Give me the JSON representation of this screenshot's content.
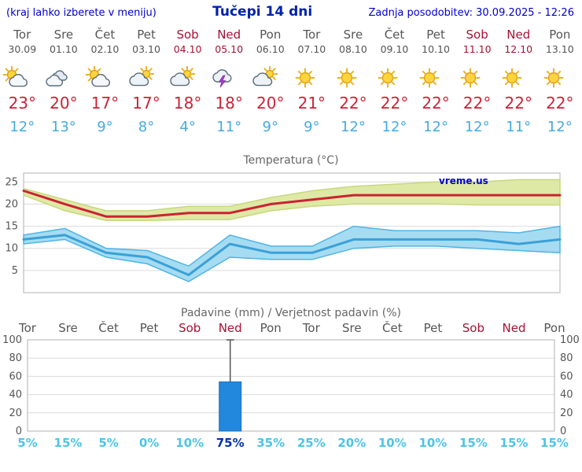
{
  "header": {
    "left_note": "(kraj lahko izberete v meniju)",
    "title": "Tučepi 14 dni",
    "last_update": "Zadnja posodobitev: 30.09.2025 - 12:26"
  },
  "days": [
    {
      "name": "Tor",
      "date": "30.09",
      "weekend": false,
      "icon": "sun-cloud",
      "tmax": "23°",
      "tmin": "12°"
    },
    {
      "name": "Sre",
      "date": "01.10",
      "weekend": false,
      "icon": "clouds",
      "tmax": "20°",
      "tmin": "13°"
    },
    {
      "name": "Čet",
      "date": "02.10",
      "weekend": false,
      "icon": "sun-cloud",
      "tmax": "17°",
      "tmin": "9°"
    },
    {
      "name": "Pet",
      "date": "03.10",
      "weekend": false,
      "icon": "cloud-sun",
      "tmax": "17°",
      "tmin": "8°"
    },
    {
      "name": "Sob",
      "date": "04.10",
      "weekend": true,
      "icon": "cloud-sun",
      "tmax": "18°",
      "tmin": "4°"
    },
    {
      "name": "Ned",
      "date": "05.10",
      "weekend": true,
      "icon": "thunder",
      "tmax": "18°",
      "tmin": "11°"
    },
    {
      "name": "Pon",
      "date": "06.10",
      "weekend": false,
      "icon": "cloud-sun",
      "tmax": "20°",
      "tmin": "9°"
    },
    {
      "name": "Tor",
      "date": "07.10",
      "weekend": false,
      "icon": "sun",
      "tmax": "21°",
      "tmin": "9°"
    },
    {
      "name": "Sre",
      "date": "08.10",
      "weekend": false,
      "icon": "sun",
      "tmax": "22°",
      "tmin": "12°"
    },
    {
      "name": "Čet",
      "date": "09.10",
      "weekend": false,
      "icon": "sun",
      "tmax": "22°",
      "tmin": "12°"
    },
    {
      "name": "Pet",
      "date": "10.10",
      "weekend": false,
      "icon": "sun",
      "tmax": "22°",
      "tmin": "12°"
    },
    {
      "name": "Sob",
      "date": "11.10",
      "weekend": true,
      "icon": "sun",
      "tmax": "22°",
      "tmin": "12°"
    },
    {
      "name": "Ned",
      "date": "12.10",
      "weekend": true,
      "icon": "sun",
      "tmax": "22°",
      "tmin": "11°"
    },
    {
      "name": "Pon",
      "date": "13.10",
      "weekend": false,
      "icon": "sun",
      "tmax": "22°",
      "tmin": "12°"
    }
  ],
  "chart_data": [
    {
      "type": "line",
      "title": "Temperatura (°C)",
      "x_labels": [
        "Tor",
        "Sre",
        "Čet",
        "Pet",
        "Sob",
        "Ned",
        "Pon",
        "Tor",
        "Sre",
        "Čet",
        "Pet",
        "Sob",
        "Ned",
        "Pon"
      ],
      "ylim": [
        0,
        27
      ],
      "yticks": [
        5,
        10,
        15,
        20,
        25
      ],
      "watermark": "vreme.us",
      "series": [
        {
          "name": "max-range",
          "type": "band",
          "fill": "#dfe9a6",
          "stroke": "#c6d87e",
          "upper": [
            23.5,
            21,
            18.5,
            18.5,
            19.5,
            19.5,
            21.5,
            23,
            24,
            24.5,
            25,
            25,
            25.5,
            25.5
          ],
          "lower": [
            22,
            18.5,
            16.3,
            16.3,
            16.5,
            16.5,
            18.5,
            19.5,
            20,
            20,
            20,
            19.8,
            19.8,
            19.8
          ]
        },
        {
          "name": "min-range",
          "type": "band",
          "fill": "#a6dcf2",
          "stroke": "#4fb4e4",
          "upper": [
            13,
            14.5,
            10,
            9.5,
            6,
            13,
            10.5,
            10.5,
            15,
            14,
            14,
            14,
            13.5,
            15
          ],
          "lower": [
            11,
            12,
            8,
            6.5,
            2.5,
            8,
            7.5,
            7.5,
            10,
            10.5,
            10.5,
            10,
            9.5,
            9
          ]
        },
        {
          "name": "temp-max",
          "type": "line",
          "color": "#cc2233",
          "values": [
            23,
            20,
            17.2,
            17.2,
            18,
            18,
            20,
            21,
            22,
            22,
            22,
            22,
            22,
            22
          ]
        },
        {
          "name": "temp-min",
          "type": "line",
          "color": "#3ba0d8",
          "values": [
            12,
            13,
            9,
            8,
            4,
            11,
            9,
            9,
            12,
            12,
            12,
            12,
            11,
            12
          ]
        }
      ]
    },
    {
      "type": "bar",
      "title": "Padavine (mm) / Verjetnost padavin (%)",
      "categories": [
        "Tor",
        "Sre",
        "Čet",
        "Pet",
        "Sob",
        "Ned",
        "Pon",
        "Tor",
        "Sre",
        "Čet",
        "Pet",
        "Sob",
        "Ned",
        "Pon"
      ],
      "weekend_flags": [
        false,
        false,
        false,
        false,
        true,
        true,
        false,
        false,
        false,
        false,
        false,
        true,
        true,
        false
      ],
      "values": [
        0,
        0,
        0,
        0,
        0,
        54,
        0,
        0,
        0,
        0,
        0,
        0,
        0,
        0
      ],
      "whisker_max": [
        null,
        null,
        null,
        null,
        null,
        100,
        null,
        null,
        null,
        null,
        null,
        null,
        null,
        null
      ],
      "probabilities": [
        "5%",
        "15%",
        "5%",
        "0%",
        "10%",
        "75%",
        "35%",
        "25%",
        "20%",
        "10%",
        "10%",
        "15%",
        "15%",
        "15%"
      ],
      "prob_highlight_index": 5,
      "ylim": [
        0,
        100
      ],
      "yticks": [
        0,
        20,
        40,
        60,
        80,
        100
      ],
      "bar_color": "#2288dd"
    }
  ],
  "colors": {
    "link_blue": "#0000cc",
    "title_blue": "#0022aa",
    "weekend_red": "#a81133",
    "day_gray": "#555555",
    "tmax_red": "#cc2236",
    "tmin_blue": "#46abdf",
    "prob_cyan": "#4cc4e8",
    "prob_highlight": "#0033aa",
    "grid_gray": "#dcdcdc",
    "bar_blue": "#2288dd"
  }
}
